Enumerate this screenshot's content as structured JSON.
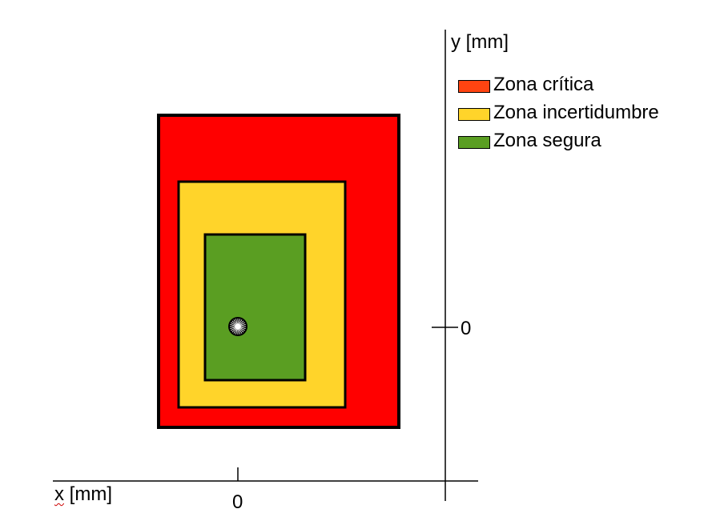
{
  "axes": {
    "y_label": "y [mm]",
    "x_label_var": "x",
    "x_label_unit": " [mm]",
    "x_origin_label": "0",
    "y_origin_label": "0"
  },
  "legend": {
    "items": [
      {
        "label": "Zona crítica",
        "color": "#ff4411"
      },
      {
        "label": "Zona incertidumbre",
        "color": "#ffd42a"
      },
      {
        "label": "Zona segura",
        "color": "#5a9e22"
      }
    ]
  },
  "zones": {
    "critical_color": "#ff0000",
    "uncertainty_color": "#ffd42a",
    "safe_color": "#5a9e22",
    "border_color": "#000000"
  },
  "marker": {
    "icon": "target-point-icon"
  }
}
